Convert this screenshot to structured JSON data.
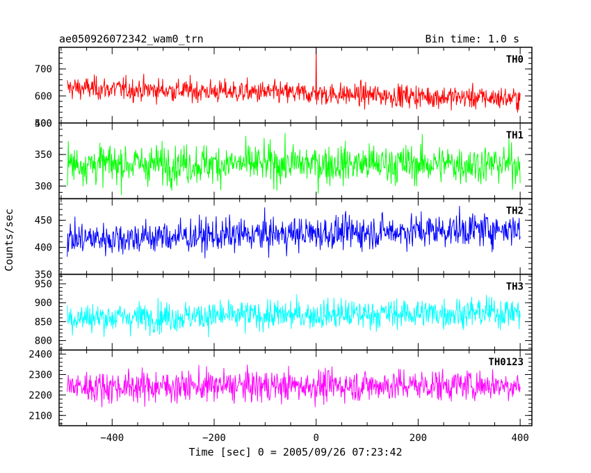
{
  "header": {
    "title": "ae050926072342_wam0_trn",
    "bin_time": "Bin time: 1.0 s"
  },
  "axes": {
    "xlabel": "Time [sec] 0 = 2005/09/26 07:23:42",
    "ylabel": "Counts/sec"
  },
  "chart_data": {
    "type": "line",
    "title": "ae050926072342_wam0_trn",
    "subtitle": "Bin time: 1.0 s",
    "xlabel": "Time [sec] 0 = 2005/09/26 07:23:42",
    "ylabel": "Counts/sec",
    "xlim": [
      -504,
      423
    ],
    "xticks": [
      -400,
      -200,
      0,
      200,
      400
    ],
    "x_range": [
      -488,
      400
    ],
    "bin_time": 1.0,
    "grid": false,
    "legend": "none",
    "series": [
      {
        "name": "TH0",
        "color": "#ff0000",
        "ylim": [
          500,
          780
        ],
        "yticks": [
          500,
          600,
          700
        ],
        "mean_start": 630,
        "mean_end": 590,
        "amplitude": 30,
        "spikes": [
          {
            "x": 0,
            "y": 780
          }
        ]
      },
      {
        "name": "TH1",
        "color": "#00ff00",
        "ylim": [
          280,
          400
        ],
        "yticks": [
          300,
          350,
          400
        ],
        "mean_start": 335,
        "mean_end": 335,
        "amplitude": 22,
        "spikes": []
      },
      {
        "name": "TH2",
        "color": "#0000ff",
        "ylim": [
          350,
          490
        ],
        "yticks": [
          350,
          400,
          450
        ],
        "mean_start": 415,
        "mean_end": 435,
        "amplitude": 22,
        "spikes": []
      },
      {
        "name": "TH3",
        "color": "#00ffff",
        "ylim": [
          775,
          975
        ],
        "yticks": [
          800,
          850,
          900,
          950
        ],
        "mean_start": 860,
        "mean_end": 875,
        "amplitude": 28,
        "spikes": []
      },
      {
        "name": "TH0123",
        "color": "#ff00ff",
        "ylim": [
          2050,
          2420
        ],
        "yticks": [
          2100,
          2200,
          2300,
          2400
        ],
        "mean_start": 2240,
        "mean_end": 2250,
        "amplitude": 55,
        "spikes": []
      }
    ]
  }
}
